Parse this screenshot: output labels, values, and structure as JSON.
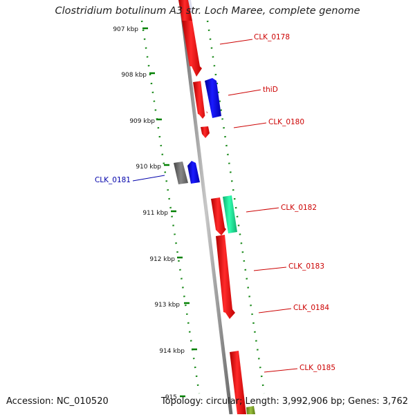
{
  "title": "Clostridium botulinum A3 str. Loch Maree, complete genome",
  "footer": {
    "accession": "Accession: NC_010520",
    "info": "Topology: circular; Length: 3,992,906 bp; Genes: 3,762"
  },
  "colors": {
    "forward_gene": "#ff0000",
    "reverse_gene": "#0000ff",
    "rna_gene": "#00e08a",
    "other_gene": "#666666",
    "olive_gene": "#7a9a20",
    "backbone": "#8a8a8a",
    "tick": "#008000",
    "label_forward": "#cc0000",
    "label_reverse": "#0000aa"
  },
  "ticks": [
    {
      "label": "907 kbp"
    },
    {
      "label": "908 kbp"
    },
    {
      "label": "909 kbp"
    },
    {
      "label": "910 kbp"
    },
    {
      "label": "911 kbp"
    },
    {
      "label": "912 kbp"
    },
    {
      "label": "913 kbp"
    },
    {
      "label": "914 kbp"
    },
    {
      "label": "915"
    }
  ],
  "gene_labels": [
    {
      "text": "CLK_0178",
      "strand": "forward"
    },
    {
      "text": "thiD",
      "strand": "forward"
    },
    {
      "text": "CLK_0180",
      "strand": "forward"
    },
    {
      "text": "CLK_0181",
      "strand": "reverse"
    },
    {
      "text": "CLK_0182",
      "strand": "forward"
    },
    {
      "text": "CLK_0183",
      "strand": "forward"
    },
    {
      "text": "CLK_0184",
      "strand": "forward"
    },
    {
      "text": "CLK_0185",
      "strand": "forward"
    }
  ]
}
